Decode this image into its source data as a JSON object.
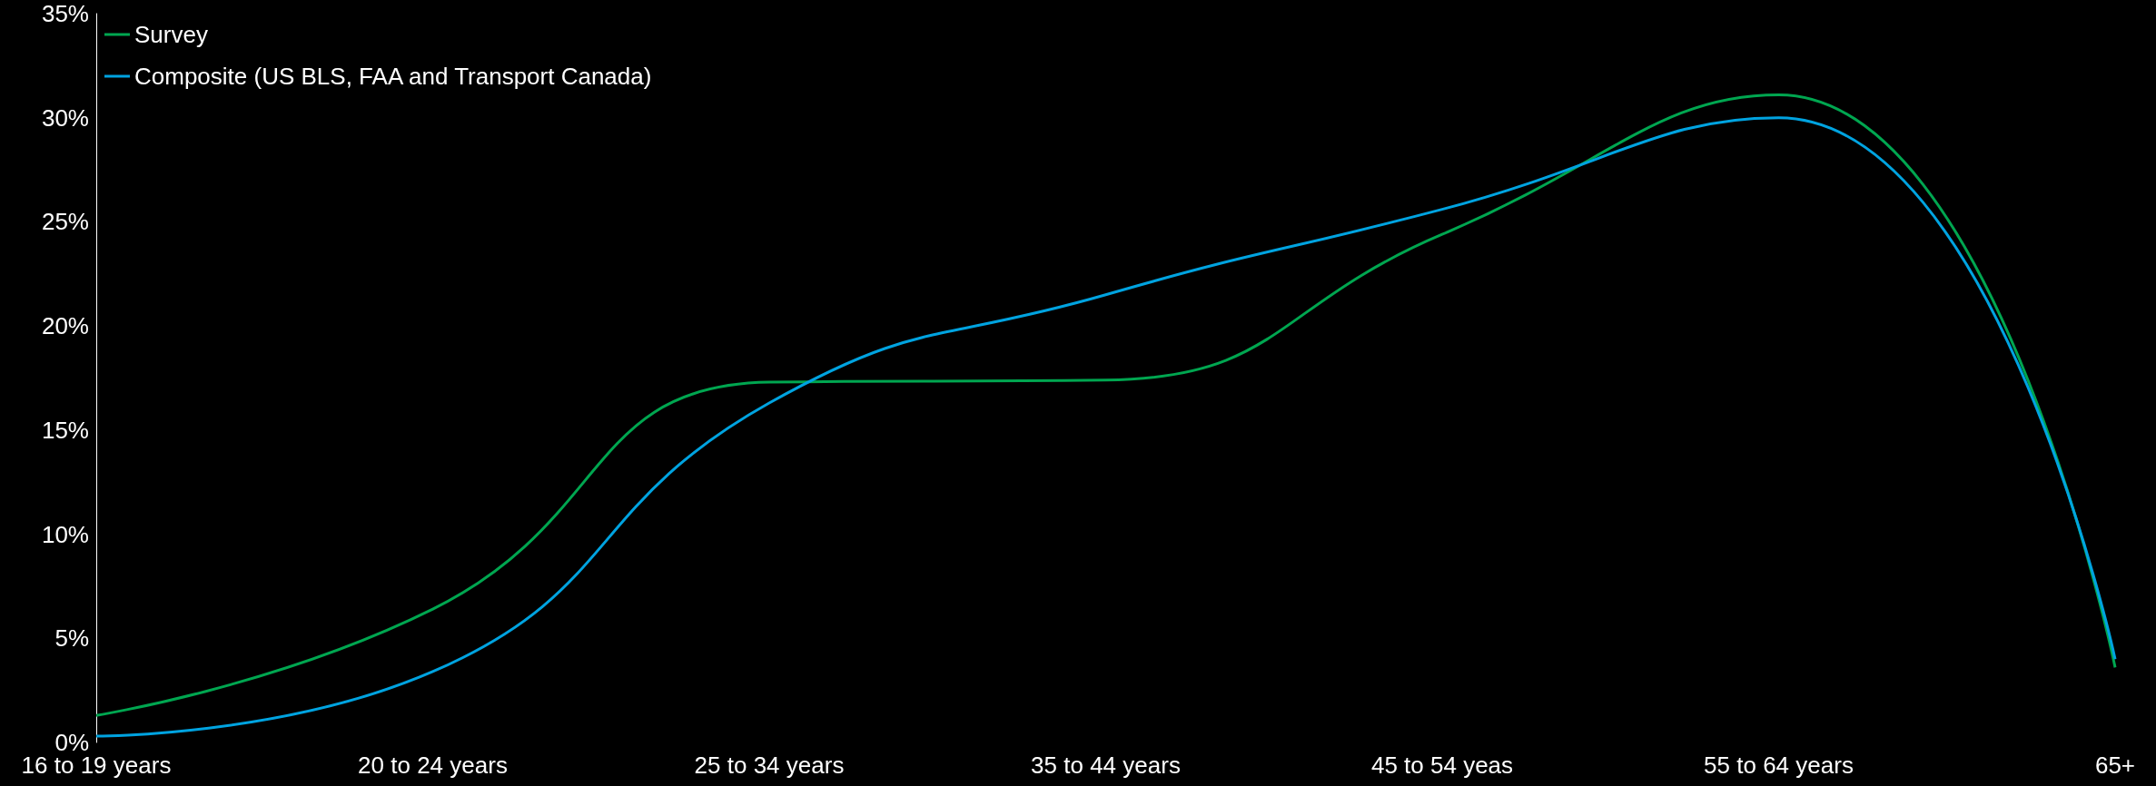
{
  "chart_data": {
    "type": "line",
    "categories": [
      "16 to 19 years",
      "20 to 24 years",
      "25 to 34 years",
      "35 to 44 years",
      "45 to 54 yeas",
      "55 to 64 years",
      "65+"
    ],
    "series": [
      {
        "name": "Survey",
        "color": "#00a650",
        "values": [
          1.3,
          6.4,
          17.3,
          17.4,
          24.4,
          31.1,
          3.6
        ]
      },
      {
        "name": "Composite (US BLS, FAA and Transport Canada)",
        "color": "#00a3e0",
        "values": [
          0.3,
          3.4,
          16.3,
          21.5,
          25.6,
          30.0,
          4.0
        ]
      }
    ],
    "ylim": [
      0,
      35
    ],
    "yticks": [
      {
        "value": 0,
        "label": "0%"
      },
      {
        "value": 5,
        "label": "5%"
      },
      {
        "value": 10,
        "label": "10%"
      },
      {
        "value": 15,
        "label": "15%"
      },
      {
        "value": 20,
        "label": "20%"
      },
      {
        "value": 25,
        "label": "25%"
      },
      {
        "value": 30,
        "label": "30%"
      },
      {
        "value": 35,
        "label": "35%"
      }
    ],
    "grid": false,
    "legend": "top left",
    "marker": "none",
    "line_style": "solid"
  }
}
